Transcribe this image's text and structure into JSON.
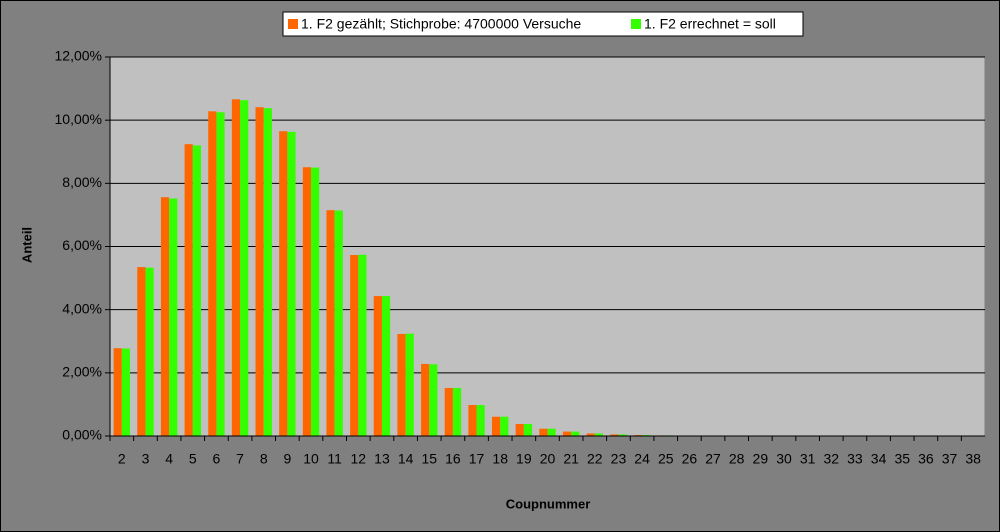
{
  "chart_data": {
    "type": "bar",
    "x_label": "Coupnummer",
    "y_label": "Anteil",
    "categories": [
      "2",
      "3",
      "4",
      "5",
      "6",
      "7",
      "8",
      "9",
      "10",
      "11",
      "12",
      "13",
      "14",
      "15",
      "16",
      "17",
      "18",
      "19",
      "20",
      "21",
      "22",
      "23",
      "24",
      "25",
      "26",
      "27",
      "28",
      "29",
      "30",
      "31",
      "32",
      "33",
      "34",
      "35",
      "36",
      "37",
      "38"
    ],
    "series": [
      {
        "name": "1. F2 gezählt; Stichprobe: 4700000 Versuche",
        "color": "#ff6600",
        "values": [
          2.78,
          5.35,
          7.56,
          9.24,
          10.28,
          10.66,
          10.41,
          9.65,
          8.51,
          7.15,
          5.73,
          4.43,
          3.23,
          2.28,
          1.52,
          0.98,
          0.61,
          0.38,
          0.23,
          0.14,
          0.08,
          0.05,
          0.03,
          0.02,
          0.01,
          0.005,
          0,
          0,
          0,
          0,
          0,
          0,
          0,
          0,
          0,
          0,
          0
        ]
      },
      {
        "name": "1. F2 errechnet = soll",
        "color": "#33ff00",
        "values": [
          2.77,
          5.33,
          7.52,
          9.2,
          10.25,
          10.63,
          10.38,
          9.63,
          8.5,
          7.14,
          5.74,
          4.43,
          3.24,
          2.27,
          1.52,
          0.98,
          0.61,
          0.38,
          0.23,
          0.14,
          0.08,
          0.05,
          0.03,
          0.02,
          0.01,
          0.005,
          0,
          0,
          0,
          0,
          0,
          0,
          0,
          0,
          0,
          0,
          0
        ]
      }
    ],
    "ylim": [
      0,
      12
    ],
    "yticks": [
      {
        "value": 0,
        "label": "0,00%"
      },
      {
        "value": 2,
        "label": "2,00%"
      },
      {
        "value": 4,
        "label": "4,00%"
      },
      {
        "value": 6,
        "label": "6,00%"
      },
      {
        "value": 8,
        "label": "8,00%"
      },
      {
        "value": 10,
        "label": "10,00%"
      },
      {
        "value": 12,
        "label": "12,00%"
      }
    ],
    "grid": true
  }
}
